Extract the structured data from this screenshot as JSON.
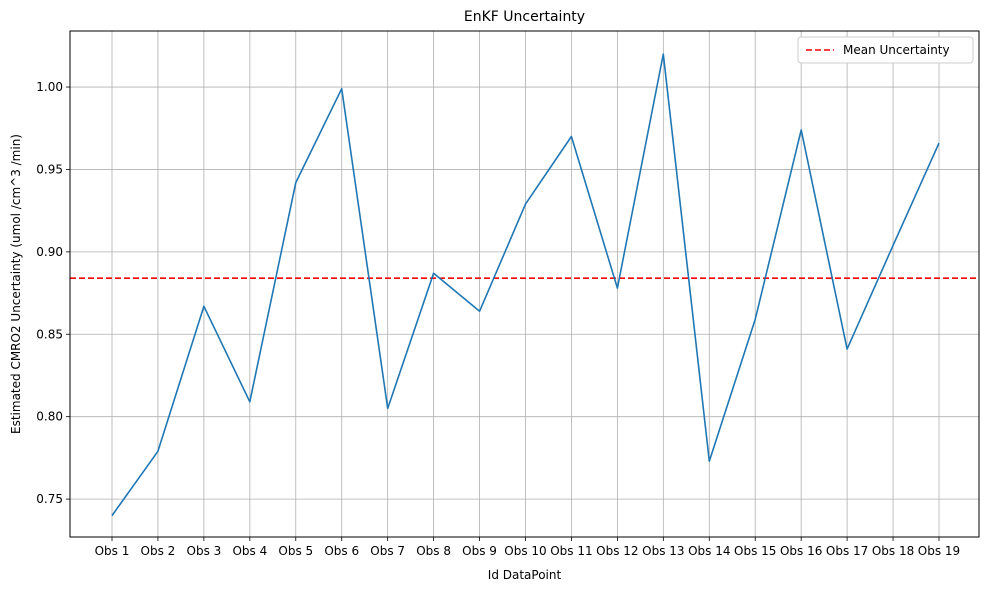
{
  "chart_data": {
    "type": "line",
    "title": "EnKF Uncertainty",
    "xlabel": "Id DataPoint",
    "ylabel": "Estimated CMRO2 Uncertainty (umol /cm^3 /min)",
    "categories": [
      "Obs 1",
      "Obs 2",
      "Obs 3",
      "Obs 4",
      "Obs 5",
      "Obs 6",
      "Obs 7",
      "Obs 8",
      "Obs 9",
      "Obs 10",
      "Obs 11",
      "Obs 12",
      "Obs 13",
      "Obs 14",
      "Obs 15",
      "Obs 16",
      "Obs 17",
      "Obs 18",
      "Obs 19"
    ],
    "series": [
      {
        "color": "#1f77b4",
        "values": [
          0.74,
          0.779,
          0.867,
          0.809,
          0.942,
          0.999,
          0.805,
          0.887,
          0.864,
          0.929,
          0.97,
          0.878,
          1.02,
          0.773,
          0.859,
          0.974,
          0.841,
          0.904,
          0.966
        ]
      }
    ],
    "reference_line": {
      "name": "Mean Uncertainty",
      "value": 0.884,
      "color": "#ff0000",
      "style": "dashed"
    },
    "ylim": [
      0.727,
      1.034
    ],
    "yticks": [
      0.75,
      0.8,
      0.85,
      0.9,
      0.95,
      1.0
    ],
    "ytick_labels": [
      "0.75",
      "0.80",
      "0.85",
      "0.90",
      "0.95",
      "1.00"
    ],
    "grid": true,
    "legend_position": "top-right"
  }
}
